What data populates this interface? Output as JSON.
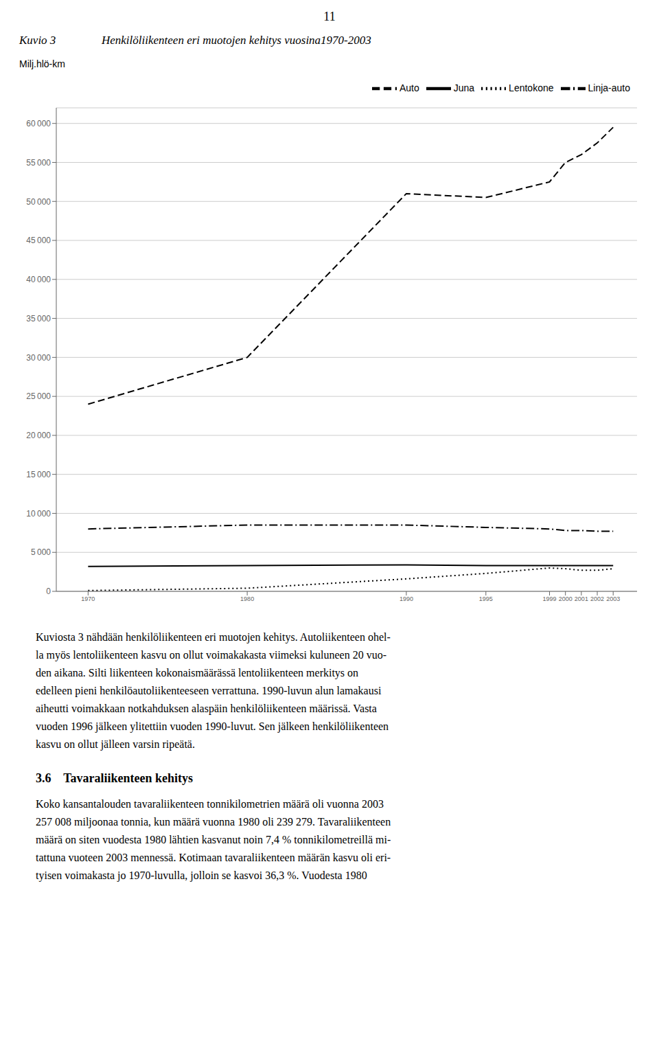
{
  "chart_data": {
    "type": "line",
    "title": "Henkilöliikenteen eri muotojen kehitys vuosina1970-2003",
    "ylabel": "Milj.hlö-km",
    "x": [
      1970,
      1980,
      1990,
      1995,
      1999,
      2000,
      2001,
      2002,
      2003
    ],
    "series": [
      {
        "name": "Auto",
        "color": "#000000",
        "line_style": "dashed",
        "values": [
          24000,
          30000,
          51000,
          50500,
          52500,
          55000,
          56000,
          57500,
          59500
        ]
      },
      {
        "name": "Linja-auto",
        "color": "#000000",
        "line_style": "dashdot",
        "values": [
          8000,
          8500,
          8500,
          8200,
          8000,
          7800,
          7800,
          7700,
          7700
        ]
      },
      {
        "name": "Juna",
        "color": "#000000",
        "line_style": "solid",
        "values": [
          3200,
          3300,
          3400,
          3300,
          3300,
          3300,
          3300,
          3300,
          3300
        ]
      },
      {
        "name": "Lentokone",
        "color": "#000000",
        "line_style": "dotted",
        "values": [
          100,
          400,
          1600,
          2300,
          3000,
          2900,
          2700,
          2700,
          2900
        ]
      }
    ],
    "xlim": [
      1968,
      2004.5
    ],
    "xticks": [
      1970,
      1980,
      1990,
      1995,
      1999,
      2000,
      2001,
      2002,
      2003
    ],
    "ylim": [
      0,
      62000
    ],
    "yticks": [
      0,
      {
        "value": 5000,
        "label": "5 000"
      },
      {
        "value": 10000,
        "label": "10 000"
      },
      {
        "value": 15000,
        "label": "15 000"
      },
      {
        "value": 20000,
        "label": "20 000"
      },
      {
        "value": 25000,
        "label": "25 000"
      },
      {
        "value": 30000,
        "label": "30 000"
      },
      {
        "value": 35000,
        "label": "35 000"
      },
      {
        "value": 40000,
        "label": "40 000"
      },
      {
        "value": 45000,
        "label": "45 000"
      },
      {
        "value": 50000,
        "label": "50 000"
      },
      {
        "value": 55000,
        "label": "55 000"
      },
      {
        "value": 60000,
        "label": "60 000"
      }
    ],
    "grid": true,
    "legend": "upper right",
    "annotations": [
      "11",
      "Kuvio 3",
      "Kuviosta 3 nähdään henkilöliikenteen eri muotojen kehitys. Autoliikenteen ohel-",
      "la myös lentoliikenteen kasvu on ollut voimakakasta viimeksi kuluneen 20 vuo-",
      "den aikana. Silti liikenteen kokonaismäärässä lentoliikenteen merkitys on",
      "edelleen pieni henkilöautoliikenteeseen verrattuna. 1990-luvun alun lamakausi",
      "aiheutti voimakkaan notkahduksen alaspäin henkilöliikenteen määrissä. Vasta",
      "vuoden 1996 jälkeen ylitettiin vuoden 1990-luvut. Sen jälkeen henkilöliikenteen",
      "kasvu on ollut jälleen varsin ripeätä.",
      "3.6    Tavaraliikenteen kehitys",
      "Koko kansantalouden tavaraliikenteen tonnikilometrien määrä oli vuonna 2003",
      "257 008 miljoonaa tonnia, kun määrä vuonna 1980 oli 239 279. Tavaraliikenteen",
      "määrä on siten vuodesta 1980 lähtien kasvanut noin 7,4 % tonnikilometreillä mi-",
      "tattuna vuoteen 2003 mennessä. Kotimaan tavaraliikenteen määrän kasvu oli eri-",
      "tyisen voimakasta jo 1970-luvulla, jolloin se kasvoi 36,3 %. Vuodesta 1980"
    ]
  }
}
